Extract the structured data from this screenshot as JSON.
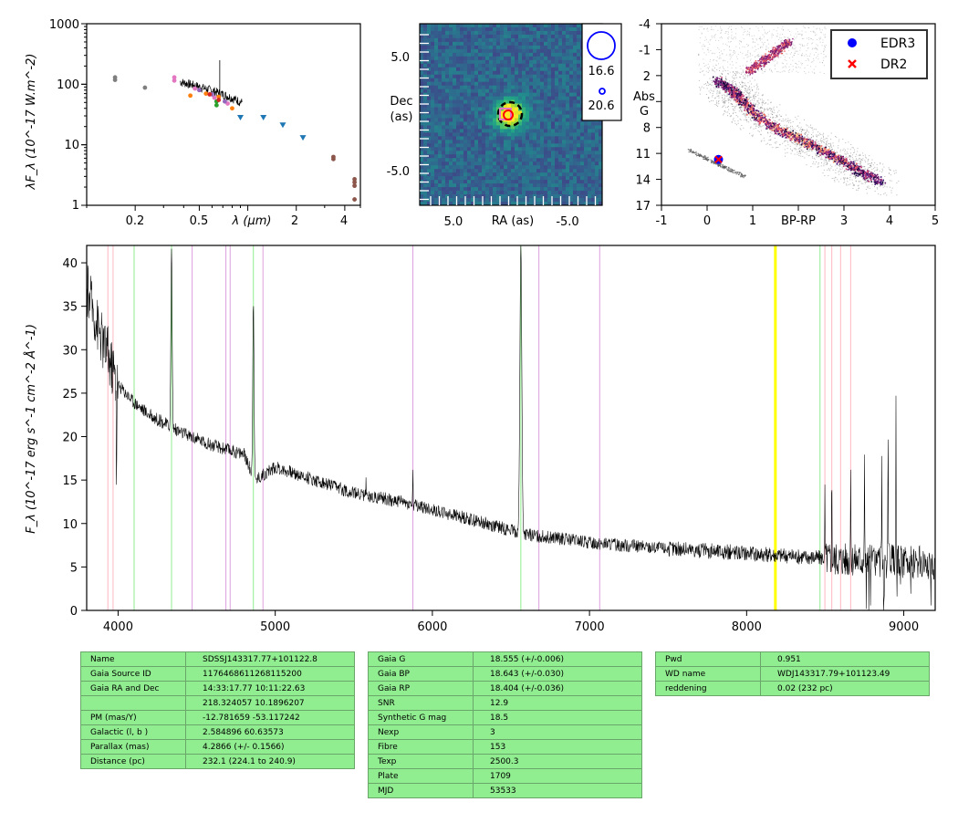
{
  "sed": {
    "ylabel": "λF_λ (10^-17 W.m^-2)",
    "xlabel": "λ (μm)",
    "yticks": [
      "1",
      "10",
      "100",
      "1000"
    ],
    "xticks": [
      "0.2",
      "0.5",
      "2",
      "4"
    ],
    "ylim": [
      1,
      1000
    ],
    "xlim_um": [
      0.1,
      5
    ],
    "scale": "log-log",
    "chart_data": {
      "type": "scatter",
      "series": [
        {
          "color": "#7f7f7f",
          "x": [
            0.15,
            0.15,
            0.23
          ],
          "y": [
            130,
            118,
            88
          ]
        },
        {
          "color": "#e377c2",
          "x": [
            0.35,
            0.35,
            0.47,
            0.62,
            0.75
          ],
          "y": [
            130,
            115,
            85,
            60,
            48
          ]
        },
        {
          "color": "#ff7f0e",
          "x": [
            0.44,
            0.55,
            0.66,
            0.8
          ],
          "y": [
            65,
            70,
            62,
            40
          ]
        },
        {
          "color": "#2ca02c",
          "x": [
            0.64,
            0.64
          ],
          "y": [
            52,
            45
          ]
        },
        {
          "color": "#9467bd",
          "x": [
            0.5,
            0.6,
            0.72
          ],
          "y": [
            80,
            68,
            52
          ]
        },
        {
          "color": "#d62728",
          "x": [
            0.58,
            0.66
          ],
          "y": [
            68,
            55
          ]
        },
        {
          "color": "#1f77b4",
          "x": [
            0.9,
            1.25,
            1.65,
            2.2
          ],
          "y": [
            28,
            28,
            21,
            13
          ]
        },
        {
          "color": "#8c564b",
          "x": [
            3.4,
            3.4,
            4.6,
            4.6,
            4.6,
            4.6
          ],
          "y": [
            6.3,
            5.8,
            2.7,
            2.4,
            2.1,
            1.25
          ]
        }
      ],
      "spectrum_segment": {
        "color": "#000000",
        "x_range": [
          0.38,
          0.92
        ],
        "y_range": [
          40,
          130
        ]
      }
    }
  },
  "image": {
    "ylabel_1": "Dec",
    "ylabel_2": "(as)",
    "xlabel": "RA (as)",
    "xticks": [
      "5.0",
      "-5.0"
    ],
    "yticks": [
      "5.0",
      "-5.0"
    ],
    "legend": [
      "16.6",
      "20.6"
    ],
    "colormap": "viridis"
  },
  "hr": {
    "ylabel_1": "Abs",
    "ylabel_2": "G",
    "xlabel": "BP-RP",
    "xticks": [
      "-1",
      "0",
      "1",
      "3",
      "4",
      "5"
    ],
    "yticks": [
      "-4",
      "-1",
      "2",
      "8",
      "11",
      "14",
      "17"
    ],
    "legend": [
      {
        "label": "EDR3",
        "color": "#0000ff"
      },
      {
        "label": "DR2",
        "color": "#ff0000"
      }
    ],
    "chart_data": {
      "type": "scatter",
      "edr3": {
        "x": 0.25,
        "y": 11.7
      },
      "dr2": {
        "x": 0.25,
        "y": 11.7
      }
    }
  },
  "spectrum": {
    "ylabel": "F_λ (10^-17 erg s^-1 cm^-2 Å^-1)",
    "yticks": [
      "0",
      "5",
      "10",
      "15",
      "20",
      "25",
      "30",
      "35",
      "40"
    ],
    "xticks": [
      "4000",
      "5000",
      "6000",
      "7000",
      "8000",
      "9000"
    ],
    "chart_data": {
      "type": "line",
      "xlim": [
        3800,
        9200
      ],
      "ylim": [
        0,
        42
      ],
      "continuum": [
        [
          3800,
          37
        ],
        [
          3900,
          31
        ],
        [
          4000,
          26
        ],
        [
          4100,
          24
        ],
        [
          4200,
          22.5
        ],
        [
          4400,
          20.5
        ],
        [
          4600,
          19
        ],
        [
          4800,
          18
        ],
        [
          4870,
          15
        ],
        [
          5000,
          16.5
        ],
        [
          5200,
          15.3
        ],
        [
          5500,
          13.5
        ],
        [
          5800,
          12.5
        ],
        [
          6000,
          11.6
        ],
        [
          6200,
          10.7
        ],
        [
          6400,
          9.7
        ],
        [
          6550,
          9
        ],
        [
          6600,
          8.7
        ],
        [
          6800,
          8.3
        ],
        [
          7000,
          7.8
        ],
        [
          7500,
          7.1
        ],
        [
          8000,
          6.6
        ],
        [
          8500,
          6
        ],
        [
          9000,
          5.6
        ],
        [
          9200,
          5.3
        ]
      ],
      "emission_lines": [
        {
          "x": 3935,
          "peak": 31
        },
        {
          "x": 3970,
          "peak": 28
        },
        {
          "x": 4340,
          "peak": 42
        },
        {
          "x": 4861,
          "peak": 36
        },
        {
          "x": 5577,
          "peak": 27.5
        },
        {
          "x": 5876,
          "peak": 17
        },
        {
          "x": 6563,
          "peak": 42
        },
        {
          "x": 8498,
          "peak": 14
        },
        {
          "x": 8542,
          "peak": 17
        },
        {
          "x": 8662,
          "peak": 17
        },
        {
          "x": 8750,
          "peak": 19
        },
        {
          "x": 8860,
          "peak": 20
        },
        {
          "x": 8900,
          "peak": 21
        },
        {
          "x": 8950,
          "peak": 26
        }
      ],
      "absorption_lines": [
        {
          "x": 3990,
          "depth": 11.5
        },
        {
          "x": 5577,
          "depth": 0.5
        }
      ],
      "vlines": [
        {
          "x": 3935,
          "color": "#ffb6c1"
        },
        {
          "x": 3968,
          "color": "#ffb6c1"
        },
        {
          "x": 4102,
          "color": "#90ee90"
        },
        {
          "x": 4340,
          "color": "#90ee90"
        },
        {
          "x": 4471,
          "color": "#dda0dd"
        },
        {
          "x": 4686,
          "color": "#dda0dd"
        },
        {
          "x": 4713,
          "color": "#dda0dd"
        },
        {
          "x": 4861,
          "color": "#90ee90"
        },
        {
          "x": 4922,
          "color": "#dda0dd"
        },
        {
          "x": 5876,
          "color": "#dda0dd"
        },
        {
          "x": 6563,
          "color": "#90ee90"
        },
        {
          "x": 6678,
          "color": "#dda0dd"
        },
        {
          "x": 7065,
          "color": "#dda0dd"
        },
        {
          "x": 8183,
          "color": "#ffff00",
          "width": 3
        },
        {
          "x": 8467,
          "color": "#90ee90"
        },
        {
          "x": 8498,
          "color": "#ffb6c1"
        },
        {
          "x": 8542,
          "color": "#ffb6c1"
        },
        {
          "x": 8598,
          "color": "#ffb6c1"
        },
        {
          "x": 8662,
          "color": "#ffb6c1"
        }
      ]
    }
  },
  "table1": [
    {
      "k": "Name",
      "v": "SDSSJ143317.77+101122.8"
    },
    {
      "k": "Gaia Source ID",
      "v": "1176468611268115200"
    },
    {
      "k": "Gaia RA and Dec",
      "v": "14:33:17.77    10:11:22.63"
    },
    {
      "k": "",
      "v": "218.324057    10.1896207"
    },
    {
      "k": "PM (mas/Y)",
      "v": "-12.781659    -53.117242"
    },
    {
      "k": "Galactic (l, b )",
      "v": "2.584896    60.63573"
    },
    {
      "k": "Parallax (mas)",
      "v": "4.2866 (+/- 0.1566)"
    },
    {
      "k": "Distance (pc)",
      "v": "232.1 (224.1 to 240.9)"
    }
  ],
  "table2": [
    {
      "k": "Gaia G",
      "v": "18.555 (+/-0.006)"
    },
    {
      "k": "Gaia BP",
      "v": "18.643 (+/-0.030)"
    },
    {
      "k": "Gaia RP",
      "v": "18.404 (+/-0.036)"
    },
    {
      "k": "SNR",
      "v": "12.9"
    },
    {
      "k": "Synthetic G mag",
      "v": "18.5"
    },
    {
      "k": "Nexp",
      "v": "3"
    },
    {
      "k": "Fibre",
      "v": "153"
    },
    {
      "k": "Texp",
      "v": "2500.3"
    },
    {
      "k": "Plate",
      "v": "1709"
    },
    {
      "k": "MJD",
      "v": "53533"
    }
  ],
  "table3": [
    {
      "k": "Pwd",
      "v": "0.951"
    },
    {
      "k": "WD name",
      "v": "WDJ143317.79+101123.49"
    },
    {
      "k": "reddening",
      "v": "0.02 (232 pc)"
    }
  ]
}
